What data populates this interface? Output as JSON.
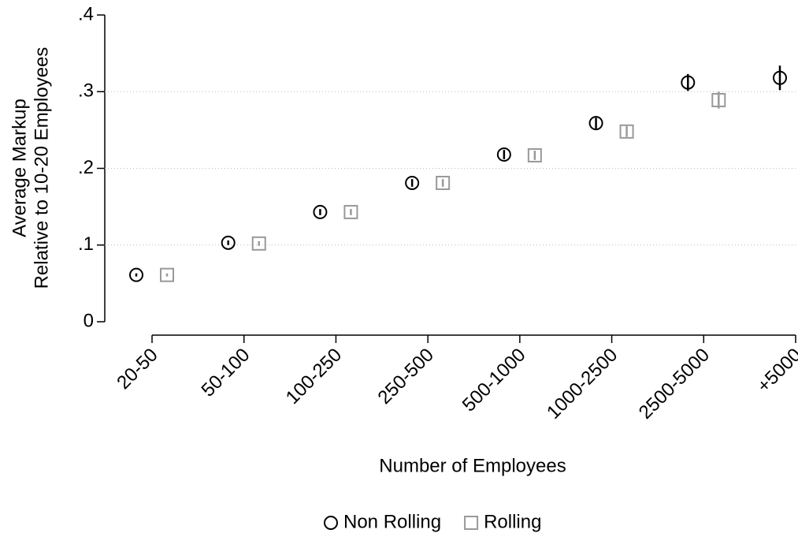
{
  "chart_data": {
    "type": "scatter",
    "xlabel": "Number of Employees",
    "ylabel": [
      "Average Markup",
      "Relative to 10-20 Employees"
    ],
    "categories": [
      "20-50",
      "50-100",
      "100-250",
      "250-500",
      "500-1000",
      "1000-2500",
      "2500-5000",
      "+5000"
    ],
    "series": [
      {
        "name": "Non Rolling",
        "color": "#000000",
        "marker": "circle",
        "values": [
          0.061,
          0.103,
          0.143,
          0.181,
          0.218,
          0.259,
          0.312,
          0.318
        ],
        "errors": [
          0.002,
          0.003,
          0.004,
          0.005,
          0.006,
          0.007,
          0.011,
          0.016
        ]
      },
      {
        "name": "Rolling",
        "color": "#999999",
        "marker": "square",
        "values": [
          0.061,
          0.102,
          0.143,
          0.181,
          0.217,
          0.248,
          0.289,
          null
        ],
        "errors": [
          0.002,
          0.003,
          0.004,
          0.005,
          0.006,
          0.007,
          0.011,
          null
        ]
      }
    ],
    "ylim": [
      0,
      0.4
    ],
    "yticks": [
      0,
      {
        "value": 0.1,
        "label": ".1"
      },
      {
        "value": 0.2,
        "label": ".2"
      },
      {
        "value": 0.3,
        "label": ".3"
      },
      {
        "value": 0.4,
        "label": ".4"
      }
    ],
    "grid": true,
    "legend": "bottom"
  }
}
